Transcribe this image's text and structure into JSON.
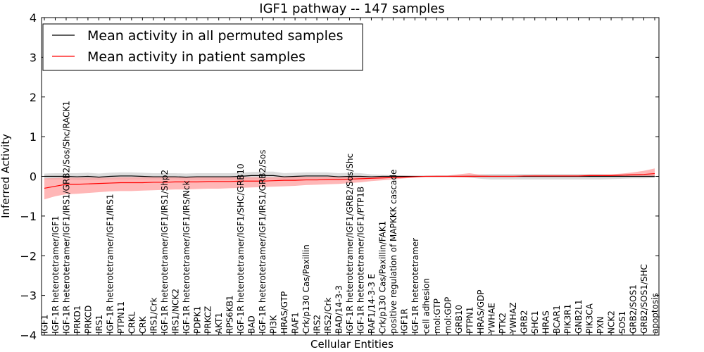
{
  "chart_data": {
    "type": "line",
    "title": "IGF1 pathway -- 147 samples",
    "xlabel": "Cellular Entities",
    "ylabel": "Inferred Activity",
    "ylim": [
      -4,
      4
    ],
    "yticks": [
      4,
      3,
      2,
      1,
      0,
      -1,
      -2,
      -3,
      -4
    ],
    "ytick_labels": [
      "4",
      "3",
      "2",
      "1",
      "0",
      "−1",
      "−2",
      "−3",
      "−4"
    ],
    "legend": {
      "position": "top-left",
      "entries": [
        {
          "label": "Mean activity in all permuted samples",
          "color": "#000000"
        },
        {
          "label": "Mean activity in patient samples",
          "color": "#ff0000"
        }
      ]
    },
    "categories": [
      "IGF1",
      "IGF-1R heterotetramer/IGF1",
      "IGF-1R heterotetramer/IGF1/IRS1/GRB2/Sos/Shc/RACK1",
      "PRKD1",
      "PRKCD",
      "IRS1",
      "IGF-1R heterotetramer/IGF1/IRS1",
      "PTPN11",
      "CRKL",
      "CRK",
      "IRS1/Crk",
      "IGF-1R heterotetramer/IGF1/IRS1/Shp2",
      "IRS1/NCK2",
      "IGF-1R heterotetramer/IGF1/IRS/Nck",
      "PDPK1",
      "PRKCZ",
      "AKT1",
      "RPS6KB1",
      "IGF-1R heterotetramer/IGF1/SHC/GRB10",
      "BAD",
      "IGF-1R heterotetramer/IGF1/IRS1/GRB2/Sos",
      "PI3K",
      "HRAS/GTP",
      "RAF1",
      "Crk/p130 Cas/Paxillin",
      "IRS2",
      "IRS2/Crk",
      "BAD/14-3-3",
      "IGF-1R heterotetramer/IGF1/GRB2/Sos/Shc",
      "IGF-1R heterotetramer/IGF1/PTP1B",
      "RAF1/14-3-3 E",
      "Crk/p130 Cas/Paxillin/FAK1",
      "positive regulation of MAPKKK cascade",
      "IGF1R",
      "IGF-1R heterotetramer",
      "cell adhesion",
      "mol:GTP",
      "mol:GDP",
      "GRB10",
      "PTPN1",
      "HRAS/GDP",
      "YWHAE",
      "PTK2",
      "YWHAZ",
      "GRB2",
      "SHC1",
      "HRAS",
      "BCAR1",
      "PIK3R1",
      "GNB2L1",
      "PIK3CA",
      "PXN",
      "NCK2",
      "SOS1",
      "GRB2/SOS1",
      "GRB2/SOS1/SHC",
      "apoptosis"
    ],
    "series": [
      {
        "name": "Mean activity in all permuted samples",
        "color": "#000000",
        "values": [
          0.0,
          0.0,
          0.0,
          -0.01,
          0.0,
          -0.02,
          0.0,
          0.01,
          0.01,
          0.0,
          -0.01,
          -0.01,
          -0.01,
          -0.02,
          -0.01,
          -0.01,
          -0.01,
          -0.01,
          0.0,
          0.02,
          0.02,
          0.02,
          -0.01,
          0.0,
          0.01,
          0.01,
          0.01,
          -0.01,
          0.0,
          0.0,
          -0.01,
          0.0,
          0.0,
          0.0,
          0.0,
          0.0,
          0.0,
          0.0,
          0.0,
          0.0,
          0.0,
          0.0,
          0.0,
          0.0,
          0.0,
          0.0,
          0.0,
          0.0,
          0.0,
          0.0,
          0.0,
          0.0,
          0.0,
          0.0,
          0.0,
          0.0,
          0.0
        ],
        "band_lower": [
          -0.07,
          -0.08,
          -0.08,
          -0.09,
          -0.09,
          -0.09,
          -0.08,
          -0.08,
          -0.08,
          -0.08,
          -0.08,
          -0.08,
          -0.08,
          -0.09,
          -0.09,
          -0.09,
          -0.09,
          -0.09,
          -0.08,
          -0.08,
          -0.08,
          -0.08,
          -0.09,
          -0.09,
          -0.08,
          -0.08,
          -0.08,
          -0.09,
          -0.09,
          -0.07,
          -0.05,
          -0.04,
          -0.03,
          -0.02,
          -0.01,
          -0.01,
          -0.01,
          -0.01,
          -0.01,
          -0.03,
          -0.06,
          -0.08,
          -0.08,
          -0.08,
          -0.08,
          -0.08,
          -0.08,
          -0.08,
          -0.08,
          -0.08,
          -0.08,
          -0.08,
          -0.07,
          -0.06,
          -0.05,
          -0.05,
          -0.04
        ],
        "band_upper": [
          0.07,
          0.08,
          0.08,
          0.08,
          0.09,
          0.07,
          0.09,
          0.1,
          0.1,
          0.09,
          0.08,
          0.08,
          0.08,
          0.07,
          0.08,
          0.08,
          0.08,
          0.08,
          0.09,
          0.11,
          0.12,
          0.12,
          0.08,
          0.09,
          0.1,
          0.1,
          0.1,
          0.08,
          0.09,
          0.08,
          0.05,
          0.04,
          0.03,
          0.02,
          0.01,
          0.01,
          0.01,
          0.01,
          0.01,
          0.03,
          0.05,
          0.06,
          0.06,
          0.06,
          0.06,
          0.06,
          0.06,
          0.06,
          0.06,
          0.06,
          0.06,
          0.06,
          0.05,
          0.05,
          0.05,
          0.05,
          0.04
        ]
      },
      {
        "name": "Mean activity in patient samples",
        "color": "#ff0000",
        "values": [
          -0.3,
          -0.25,
          -0.2,
          -0.2,
          -0.19,
          -0.18,
          -0.17,
          -0.16,
          -0.16,
          -0.16,
          -0.15,
          -0.15,
          -0.14,
          -0.14,
          -0.14,
          -0.13,
          -0.13,
          -0.13,
          -0.12,
          -0.12,
          -0.12,
          -0.11,
          -0.1,
          -0.1,
          -0.09,
          -0.09,
          -0.08,
          -0.08,
          -0.07,
          -0.06,
          -0.05,
          -0.04,
          -0.03,
          -0.02,
          -0.01,
          0.0,
          0.0,
          0.0,
          0.0,
          0.0,
          0.0,
          0.0,
          0.0,
          0.0,
          0.01,
          0.01,
          0.01,
          0.01,
          0.01,
          0.01,
          0.02,
          0.02,
          0.02,
          0.03,
          0.04,
          0.05,
          0.07
        ],
        "band_lower": [
          -0.58,
          -0.5,
          -0.45,
          -0.44,
          -0.42,
          -0.4,
          -0.38,
          -0.37,
          -0.37,
          -0.36,
          -0.35,
          -0.34,
          -0.33,
          -0.33,
          -0.32,
          -0.31,
          -0.31,
          -0.3,
          -0.29,
          -0.28,
          -0.27,
          -0.26,
          -0.25,
          -0.24,
          -0.22,
          -0.21,
          -0.2,
          -0.19,
          -0.17,
          -0.15,
          -0.12,
          -0.1,
          -0.08,
          -0.05,
          -0.03,
          -0.01,
          -0.01,
          -0.01,
          -0.02,
          -0.02,
          -0.01,
          -0.01,
          -0.01,
          -0.01,
          -0.01,
          -0.01,
          -0.01,
          -0.01,
          -0.01,
          -0.01,
          -0.01,
          -0.01,
          -0.01,
          0.0,
          0.0,
          0.0,
          0.0
        ],
        "band_upper": [
          -0.05,
          -0.04,
          -0.03,
          -0.03,
          -0.03,
          -0.03,
          -0.03,
          -0.02,
          -0.02,
          -0.02,
          -0.02,
          -0.02,
          -0.02,
          -0.02,
          -0.02,
          -0.02,
          -0.02,
          -0.02,
          -0.02,
          -0.02,
          -0.02,
          -0.02,
          -0.02,
          -0.01,
          -0.01,
          -0.01,
          -0.01,
          -0.01,
          -0.01,
          0.0,
          0.0,
          0.0,
          0.01,
          0.01,
          0.01,
          0.01,
          0.02,
          0.02,
          0.05,
          0.08,
          0.04,
          0.02,
          0.02,
          0.02,
          0.02,
          0.03,
          0.03,
          0.03,
          0.03,
          0.03,
          0.04,
          0.04,
          0.05,
          0.07,
          0.1,
          0.14,
          0.2
        ]
      }
    ]
  }
}
